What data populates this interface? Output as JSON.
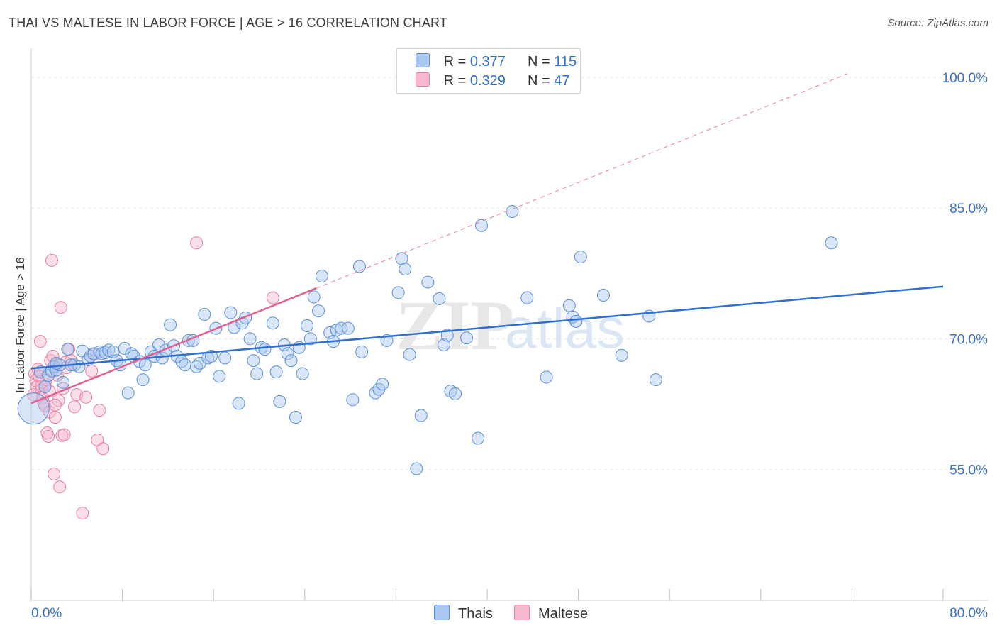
{
  "header": {
    "title": "THAI VS MALTESE IN LABOR FORCE | AGE > 16 CORRELATION CHART",
    "source": "Source: ZipAtlas.com"
  },
  "legend": {
    "rows": [
      {
        "r_label": "R =",
        "r_value": "0.377",
        "n_label": "N =",
        "n_value": "115"
      },
      {
        "r_label": "R =",
        "r_value": "0.329",
        "n_label": "N =",
        "n_value": "47"
      }
    ]
  },
  "watermark": {
    "zip": "ZIP",
    "atlas": "atlas"
  },
  "colors": {
    "thai_fill": "#a9c7f0",
    "thai_stroke": "#5b8fd8",
    "thai_line": "#2f6fd0",
    "maltese_fill": "#f6b9cc",
    "maltese_stroke": "#e87fa0",
    "maltese_line": "#e06090",
    "tick_label": "#3d72c9",
    "grid": "#e3e3e3"
  },
  "chart_data": {
    "type": "scatter",
    "title": "THAI VS MALTESE IN LABOR FORCE | AGE > 16 CORRELATION CHART",
    "xlabel": "",
    "ylabel": "In Labor Force | Age > 16",
    "xlim": [
      0,
      80
    ],
    "ylim": [
      40,
      103
    ],
    "x_tick_labels": [
      "0.0%",
      "80.0%"
    ],
    "y_ticks": [
      55,
      70,
      85,
      100
    ],
    "y_tick_labels": [
      "55.0%",
      "70.0%",
      "85.0%",
      "100.0%"
    ],
    "grid": true,
    "legend_position": "top-center",
    "series": [
      {
        "name": "Thais",
        "trend": {
          "x": [
            0,
            80
          ],
          "y": [
            66.6,
            76.0
          ]
        },
        "points": [
          [
            0.2,
            62
          ],
          [
            0.8,
            66.2
          ],
          [
            1.2,
            64.5
          ],
          [
            1.5,
            65.8
          ],
          [
            1.8,
            66.3
          ],
          [
            2.0,
            66.8
          ],
          [
            2.2,
            66.4
          ],
          [
            2.5,
            67.0
          ],
          [
            2.8,
            65.0
          ],
          [
            3.2,
            68.8
          ],
          [
            3.8,
            67.0
          ],
          [
            4.2,
            66.8
          ],
          [
            4.5,
            68.6
          ],
          [
            5.0,
            67.6
          ],
          [
            5.2,
            68.0
          ],
          [
            5.5,
            68.3
          ],
          [
            6.0,
            68.5
          ],
          [
            6.2,
            68.3
          ],
          [
            6.5,
            68.4
          ],
          [
            6.8,
            68.7
          ],
          [
            7.2,
            68.5
          ],
          [
            7.5,
            67.5
          ],
          [
            7.8,
            67.0
          ],
          [
            8.2,
            68.9
          ],
          [
            8.5,
            63.8
          ],
          [
            8.8,
            68.3
          ],
          [
            9.0,
            68.0
          ],
          [
            9.5,
            67.4
          ],
          [
            9.8,
            65.3
          ],
          [
            10.0,
            67.0
          ],
          [
            10.5,
            68.5
          ],
          [
            10.8,
            68.0
          ],
          [
            11.2,
            69.3
          ],
          [
            11.5,
            67.8
          ],
          [
            11.8,
            68.7
          ],
          [
            12.2,
            71.6
          ],
          [
            12.5,
            69.2
          ],
          [
            12.8,
            68.0
          ],
          [
            13.2,
            67.4
          ],
          [
            13.5,
            67.0
          ],
          [
            13.8,
            69.8
          ],
          [
            14.2,
            69.8
          ],
          [
            14.5,
            66.8
          ],
          [
            14.8,
            67.2
          ],
          [
            15.2,
            72.8
          ],
          [
            15.5,
            67.8
          ],
          [
            15.8,
            68.0
          ],
          [
            16.2,
            71.2
          ],
          [
            16.5,
            65.7
          ],
          [
            17.0,
            67.8
          ],
          [
            17.5,
            73.0
          ],
          [
            17.8,
            71.3
          ],
          [
            18.2,
            62.6
          ],
          [
            18.5,
            71.8
          ],
          [
            18.8,
            72.4
          ],
          [
            19.2,
            70.0
          ],
          [
            19.5,
            67.5
          ],
          [
            19.8,
            66.0
          ],
          [
            20.2,
            69.0
          ],
          [
            20.5,
            68.8
          ],
          [
            21.2,
            71.8
          ],
          [
            21.5,
            66.2
          ],
          [
            21.8,
            62.8
          ],
          [
            22.2,
            69.3
          ],
          [
            22.5,
            68.3
          ],
          [
            22.8,
            67.5
          ],
          [
            23.2,
            61.0
          ],
          [
            23.5,
            69.0
          ],
          [
            23.8,
            66.0
          ],
          [
            24.2,
            71.5
          ],
          [
            24.5,
            70.0
          ],
          [
            24.8,
            74.8
          ],
          [
            25.2,
            73.2
          ],
          [
            25.5,
            77.2
          ],
          [
            26.2,
            70.7
          ],
          [
            26.5,
            69.7
          ],
          [
            26.8,
            71.0
          ],
          [
            27.2,
            71.2
          ],
          [
            27.8,
            71.2
          ],
          [
            28.2,
            63.0
          ],
          [
            28.8,
            78.3
          ],
          [
            29.0,
            68.5
          ],
          [
            30.2,
            63.8
          ],
          [
            30.5,
            64.2
          ],
          [
            30.8,
            64.8
          ],
          [
            31.2,
            69.8
          ],
          [
            32.2,
            75.3
          ],
          [
            32.5,
            79.2
          ],
          [
            32.8,
            78.0
          ],
          [
            33.2,
            68.2
          ],
          [
            33.8,
            55.1
          ],
          [
            34.2,
            61.2
          ],
          [
            34.8,
            76.5
          ],
          [
            35.8,
            74.6
          ],
          [
            36.2,
            69.3
          ],
          [
            36.5,
            70.4
          ],
          [
            36.8,
            64.0
          ],
          [
            37.2,
            63.7
          ],
          [
            38.2,
            70.1
          ],
          [
            39.2,
            58.6
          ],
          [
            39.5,
            83.0
          ],
          [
            42.2,
            84.6
          ],
          [
            43.5,
            74.7
          ],
          [
            45.2,
            65.6
          ],
          [
            47.2,
            73.8
          ],
          [
            47.5,
            72.5
          ],
          [
            47.8,
            72.0
          ],
          [
            48.2,
            79.4
          ],
          [
            50.2,
            75.0
          ],
          [
            51.8,
            68.1
          ],
          [
            54.2,
            72.6
          ],
          [
            54.8,
            65.3
          ],
          [
            70.2,
            81.0
          ],
          [
            2.2,
            67.2
          ],
          [
            3.5,
            67.0
          ]
        ]
      },
      {
        "name": "Maltese",
        "trend": {
          "x": [
            0,
            25
          ],
          "y": [
            62.6,
            75.8
          ]
        },
        "points": [
          [
            0.2,
            63.6
          ],
          [
            0.3,
            66.0
          ],
          [
            0.4,
            65.2
          ],
          [
            0.5,
            64.5
          ],
          [
            0.6,
            66.5
          ],
          [
            0.7,
            65.7
          ],
          [
            0.8,
            69.7
          ],
          [
            0.9,
            64.2
          ],
          [
            1.0,
            63.2
          ],
          [
            1.1,
            62.6
          ],
          [
            1.2,
            62.3
          ],
          [
            1.3,
            64.8
          ],
          [
            1.4,
            59.2
          ],
          [
            1.5,
            58.8
          ],
          [
            1.6,
            61.6
          ],
          [
            1.7,
            67.5
          ],
          [
            1.8,
            79.0
          ],
          [
            1.9,
            68.0
          ],
          [
            2.0,
            54.5
          ],
          [
            2.1,
            61.0
          ],
          [
            2.2,
            67.0
          ],
          [
            2.3,
            65.8
          ],
          [
            2.4,
            62.9
          ],
          [
            2.5,
            53.0
          ],
          [
            2.6,
            73.6
          ],
          [
            2.7,
            58.9
          ],
          [
            2.8,
            64.3
          ],
          [
            2.9,
            59.0
          ],
          [
            3.0,
            67.3
          ],
          [
            3.1,
            66.7
          ],
          [
            3.3,
            68.8
          ],
          [
            3.5,
            67.5
          ],
          [
            4.0,
            63.6
          ],
          [
            4.5,
            50.0
          ],
          [
            4.8,
            63.3
          ],
          [
            5.3,
            66.3
          ],
          [
            5.5,
            68.2
          ],
          [
            5.8,
            58.4
          ],
          [
            6.0,
            61.8
          ],
          [
            6.3,
            57.4
          ],
          [
            14.5,
            81.0
          ],
          [
            21.2,
            74.7
          ],
          [
            0.9,
            64.6
          ],
          [
            1.6,
            64.0
          ],
          [
            2.1,
            62.4
          ],
          [
            3.8,
            62.2
          ],
          [
            1.3,
            65.3
          ]
        ]
      }
    ]
  },
  "bottom_legend": {
    "items": [
      "Thais",
      "Maltese"
    ]
  }
}
